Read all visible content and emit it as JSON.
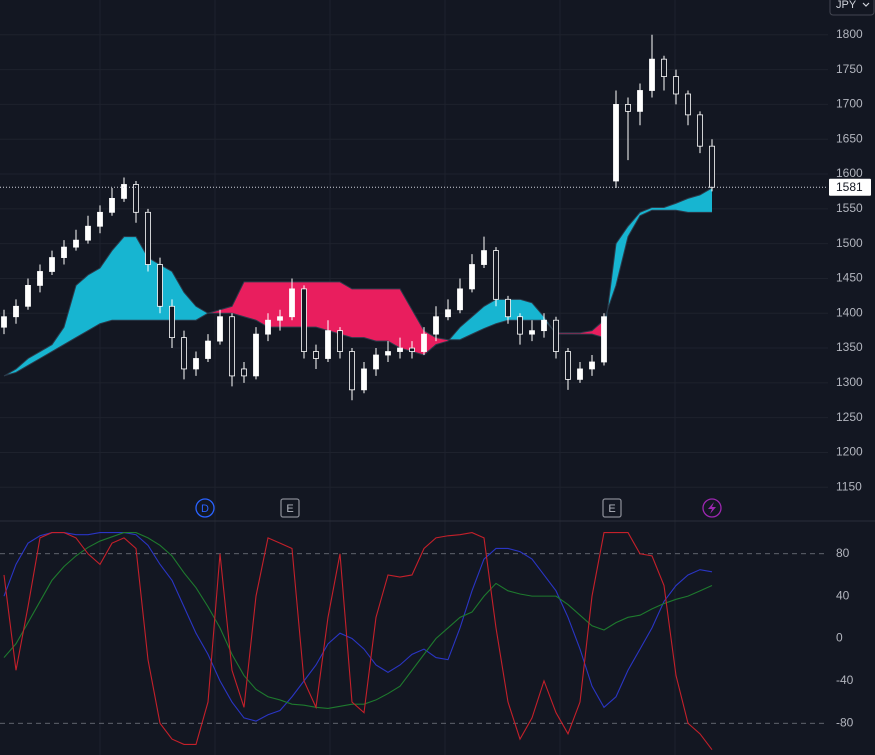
{
  "chart_data": [
    {
      "type": "candlestick",
      "categories": [
        null,
        null,
        null,
        null,
        null,
        null,
        null,
        null,
        null,
        null,
        null,
        null,
        null,
        null,
        null,
        null,
        null,
        null,
        null,
        null,
        null,
        null,
        null,
        null,
        null,
        null,
        null,
        null,
        null,
        null,
        null,
        null,
        null,
        null,
        null,
        null,
        null,
        null,
        null,
        null,
        null,
        null,
        null,
        null,
        null,
        null,
        null,
        null,
        null,
        null,
        null,
        null,
        null,
        null,
        null,
        null,
        null,
        null,
        null,
        null
      ],
      "open": [
        1380,
        1395,
        1410,
        1440,
        1460,
        1480,
        1495,
        1505,
        1525,
        1545,
        1565,
        1585,
        1545,
        1470,
        1410,
        1365,
        1320,
        1335,
        1360,
        1395,
        1320,
        1310,
        1370,
        1390,
        1395,
        1435,
        1345,
        1335,
        1375,
        1345,
        1290,
        1320,
        1340,
        1345,
        1350,
        1345,
        1370,
        1395,
        1405,
        1435,
        1470,
        1490,
        1420,
        1395,
        1370,
        1375,
        1390,
        1345,
        1305,
        1320,
        1330,
        1590,
        1700,
        1690,
        1720,
        1765,
        1740,
        1715,
        1685,
        1640
      ],
      "high": [
        1405,
        1420,
        1450,
        1470,
        1490,
        1505,
        1520,
        1540,
        1555,
        1580,
        1595,
        1590,
        1550,
        1480,
        1420,
        1375,
        1345,
        1370,
        1405,
        1400,
        1330,
        1380,
        1400,
        1405,
        1450,
        1440,
        1355,
        1390,
        1380,
        1350,
        1330,
        1350,
        1360,
        1365,
        1360,
        1380,
        1410,
        1420,
        1450,
        1485,
        1510,
        1495,
        1425,
        1400,
        1390,
        1400,
        1395,
        1350,
        1330,
        1340,
        1400,
        1720,
        1710,
        1730,
        1800,
        1770,
        1750,
        1720,
        1690,
        1650
      ],
      "low": [
        1370,
        1385,
        1405,
        1430,
        1455,
        1470,
        1490,
        1500,
        1515,
        1540,
        1560,
        1530,
        1460,
        1400,
        1350,
        1305,
        1310,
        1330,
        1355,
        1295,
        1300,
        1305,
        1360,
        1375,
        1390,
        1335,
        1320,
        1330,
        1335,
        1275,
        1285,
        1310,
        1330,
        1335,
        1335,
        1340,
        1360,
        1390,
        1400,
        1430,
        1465,
        1410,
        1385,
        1355,
        1360,
        1365,
        1335,
        1290,
        1300,
        1310,
        1325,
        1580,
        1620,
        1670,
        1710,
        1720,
        1700,
        1670,
        1630,
        1575
      ],
      "close": [
        1395,
        1410,
        1440,
        1460,
        1480,
        1495,
        1505,
        1525,
        1545,
        1565,
        1585,
        1545,
        1470,
        1410,
        1365,
        1320,
        1335,
        1360,
        1395,
        1310,
        1310,
        1370,
        1390,
        1395,
        1435,
        1345,
        1335,
        1375,
        1345,
        1290,
        1320,
        1340,
        1345,
        1350,
        1345,
        1370,
        1395,
        1405,
        1435,
        1470,
        1490,
        1420,
        1395,
        1370,
        1375,
        1390,
        1345,
        1305,
        1320,
        1330,
        1395,
        1700,
        1690,
        1720,
        1765,
        1740,
        1715,
        1685,
        1640,
        1581
      ],
      "span_a": [
        1310,
        1320,
        1335,
        1345,
        1355,
        1380,
        1440,
        1455,
        1465,
        1490,
        1510,
        1510,
        1480,
        1470,
        1460,
        1430,
        1410,
        1400,
        1400,
        1400,
        1395,
        1390,
        1380,
        1380,
        1380,
        1380,
        1380,
        1375,
        1370,
        1365,
        1365,
        1360,
        1360,
        1350,
        1345,
        1340,
        1355,
        1360,
        1380,
        1395,
        1410,
        1420,
        1420,
        1420,
        1415,
        1395,
        1370,
        1370,
        1370,
        1370,
        1365,
        1500,
        1525,
        1545,
        1552,
        1552,
        1558,
        1565,
        1570,
        1580
      ],
      "span_b": [
        1310,
        1315,
        1325,
        1335,
        1345,
        1355,
        1365,
        1375,
        1385,
        1390,
        1390,
        1390,
        1390,
        1390,
        1390,
        1390,
        1390,
        1400,
        1405,
        1410,
        1445,
        1445,
        1445,
        1445,
        1445,
        1445,
        1445,
        1445,
        1445,
        1435,
        1435,
        1435,
        1435,
        1435,
        1405,
        1375,
        1365,
        1362,
        1362,
        1370,
        1378,
        1385,
        1390,
        1390,
        1390,
        1390,
        1372,
        1372,
        1372,
        1375,
        1390,
        1440,
        1510,
        1540,
        1548,
        1548,
        1548,
        1545,
        1545,
        1545
      ],
      "up_color": "#ffffff",
      "down_color": "#131722",
      "wick_color": "#ffffff",
      "cloud_up_color": "#17b5d1",
      "cloud_down_color": "#e91e5e",
      "ylim": [
        1103,
        1850
      ],
      "yticks": [
        1150,
        1200,
        1250,
        1300,
        1350,
        1400,
        1450,
        1500,
        1550,
        1600,
        1650,
        1700,
        1750,
        1800
      ],
      "grid": true,
      "last_price": 1581,
      "currency": "JPY",
      "events": [
        "D",
        "E",
        "E"
      ]
    },
    {
      "type": "line",
      "categories": [
        null,
        null,
        null,
        null,
        null,
        null,
        null,
        null,
        null,
        null,
        null,
        null,
        null,
        null,
        null,
        null,
        null,
        null,
        null,
        null,
        null,
        null,
        null,
        null,
        null,
        null,
        null,
        null,
        null,
        null,
        null,
        null,
        null,
        null,
        null,
        null,
        null,
        null,
        null,
        null,
        null,
        null,
        null,
        null,
        null,
        null,
        null,
        null,
        null,
        null,
        null,
        null,
        null,
        null,
        null,
        null,
        null,
        null,
        null,
        null
      ],
      "series": [
        {
          "color": "#2a35c4",
          "values": [
            40,
            70,
            90,
            97,
            100,
            100,
            98,
            98,
            100,
            100,
            100,
            98,
            88,
            70,
            55,
            30,
            5,
            -15,
            -40,
            -60,
            -75,
            -78,
            -72,
            -68,
            -55,
            -40,
            -25,
            -5,
            5,
            0,
            -10,
            -25,
            -32,
            -25,
            -15,
            -10,
            -18,
            -20,
            10,
            45,
            75,
            85,
            85,
            82,
            75,
            60,
            45,
            20,
            -10,
            -45,
            -65,
            -55,
            -30,
            -10,
            10,
            35,
            50,
            60,
            65,
            63
          ]
        },
        {
          "color": "#1e7a2e",
          "values": [
            -18,
            -5,
            15,
            35,
            55,
            68,
            78,
            86,
            92,
            96,
            100,
            100,
            95,
            88,
            78,
            62,
            48,
            30,
            10,
            -15,
            -35,
            -48,
            -55,
            -58,
            -62,
            -63,
            -65,
            -66,
            -64,
            -62,
            -62,
            -58,
            -52,
            -45,
            -30,
            -15,
            0,
            10,
            20,
            25,
            40,
            52,
            45,
            42,
            40,
            40,
            40,
            32,
            22,
            12,
            8,
            15,
            20,
            22,
            28,
            33,
            37,
            40,
            45,
            50
          ]
        },
        {
          "color": "#c4202a",
          "values": [
            60,
            -30,
            30,
            95,
            100,
            100,
            95,
            80,
            70,
            90,
            95,
            85,
            -20,
            -80,
            -95,
            -100,
            -100,
            -60,
            80,
            -30,
            -65,
            40,
            95,
            90,
            85,
            -40,
            -65,
            20,
            80,
            -60,
            -70,
            20,
            60,
            58,
            60,
            85,
            95,
            97,
            98,
            100,
            95,
            10,
            -60,
            -95,
            -75,
            -40,
            -70,
            -90,
            -60,
            40,
            100,
            100,
            100,
            80,
            78,
            50,
            -35,
            -80,
            -90,
            -105
          ]
        }
      ],
      "ylim": [
        -110,
        110
      ],
      "yticks": [
        -80,
        -40,
        0,
        40,
        80
      ]
    }
  ]
}
